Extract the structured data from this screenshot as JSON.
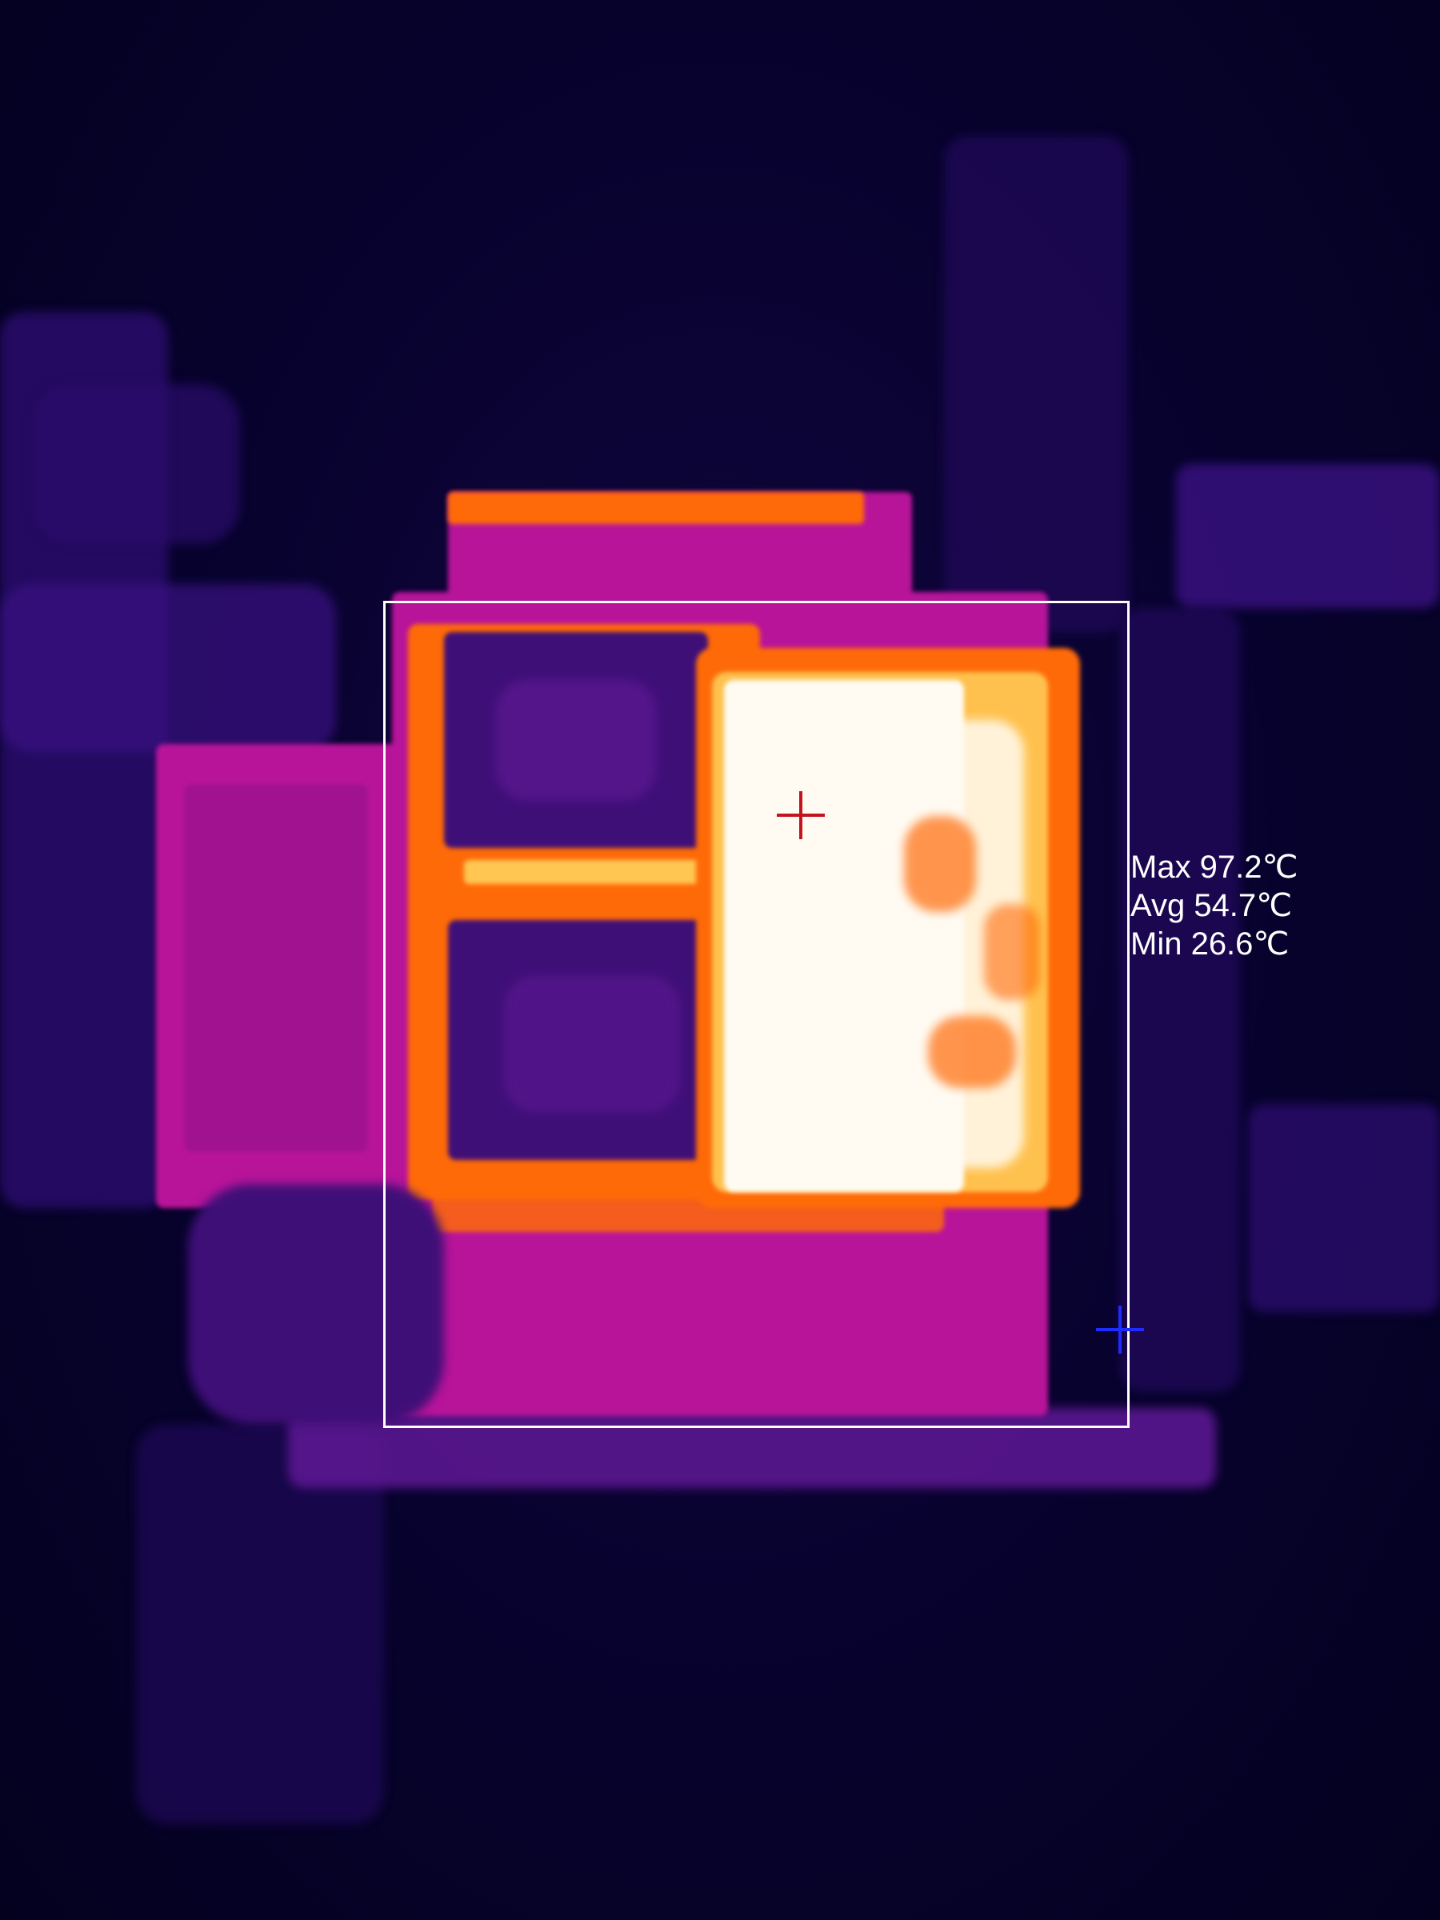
{
  "readout": {
    "max": "Max 97.2℃",
    "avg": "Avg 54.7℃",
    "min": "Min 26.6℃"
  },
  "markers": {
    "max_marker_color": "#c2141e",
    "min_marker_color": "#1f2cff",
    "roi_color": "#ffffff"
  },
  "palette": [
    "#05012a",
    "#3a1183",
    "#b8149a",
    "#ff6a08",
    "#ffd15a",
    "#fffbf2"
  ]
}
